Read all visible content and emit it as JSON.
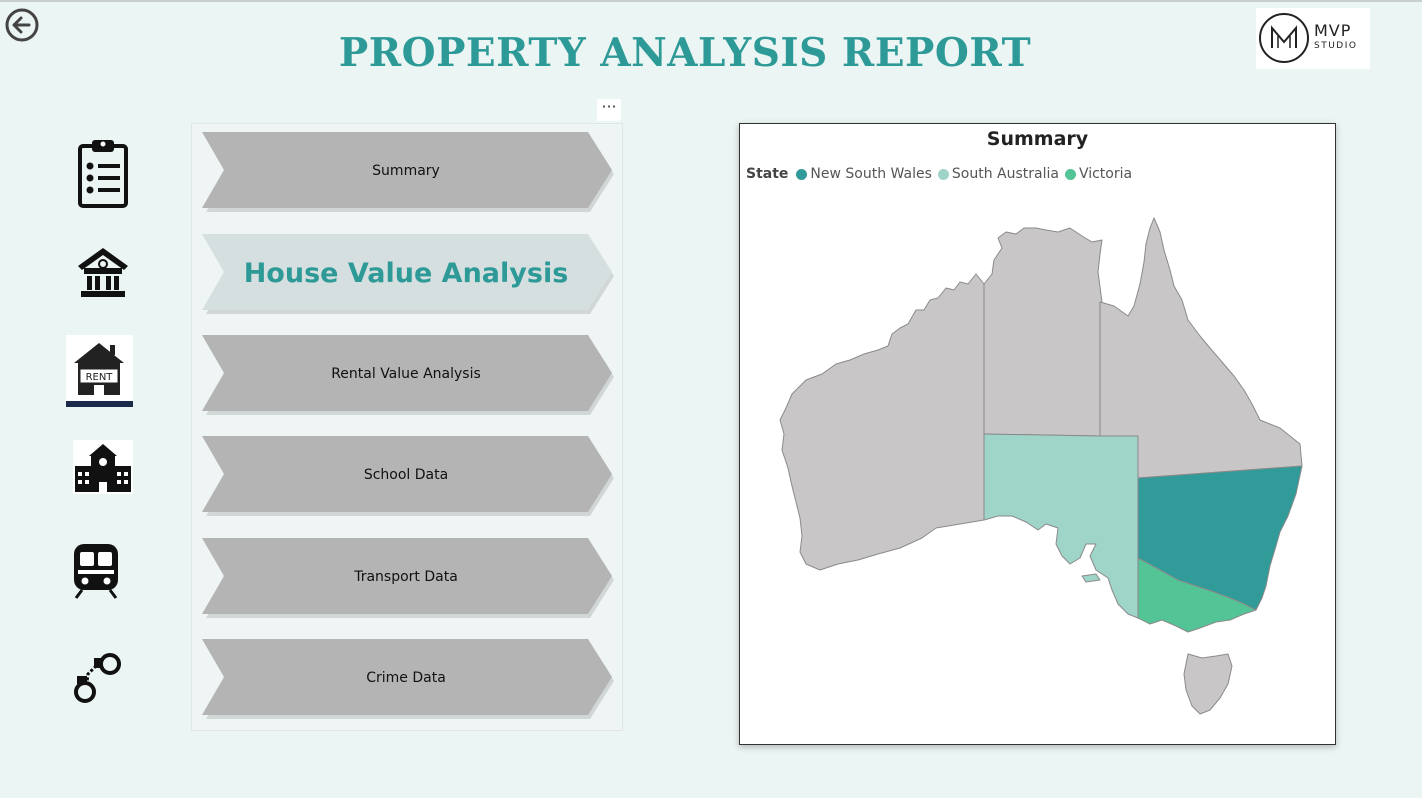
{
  "page": {
    "title": "PROPERTY ANALYSIS REPORT"
  },
  "logo": {
    "brand": "MVP",
    "sub": "STUDIO",
    "mark": "M"
  },
  "nav": {
    "more_label": "···",
    "items": [
      {
        "label": "Summary",
        "icon": "clipboard-icon",
        "active": false
      },
      {
        "label": "House Value Analysis",
        "icon": "house-icon",
        "active": true
      },
      {
        "label": "Rental Value Analysis",
        "icon": "rent-house-icon",
        "active": false
      },
      {
        "label": "School Data",
        "icon": "school-icon",
        "active": false
      },
      {
        "label": "Transport Data",
        "icon": "train-icon",
        "active": false
      },
      {
        "label": "Crime Data",
        "icon": "handcuffs-icon",
        "active": false
      }
    ],
    "rent_sign": "RENT"
  },
  "map": {
    "title": "Summary",
    "legend_title": "State",
    "legend": [
      {
        "name": "New South Wales",
        "color": "#309b99"
      },
      {
        "name": "South Australia",
        "color": "#9fd4c8"
      },
      {
        "name": "Victoria",
        "color": "#52c495"
      }
    ],
    "other_region_color": "#c8c6c6"
  },
  "colors": {
    "accent": "#2e9a98",
    "background": "#ebf5f3",
    "chevron": "#b4b4b4",
    "chevron_active": "#d5dfdf"
  }
}
